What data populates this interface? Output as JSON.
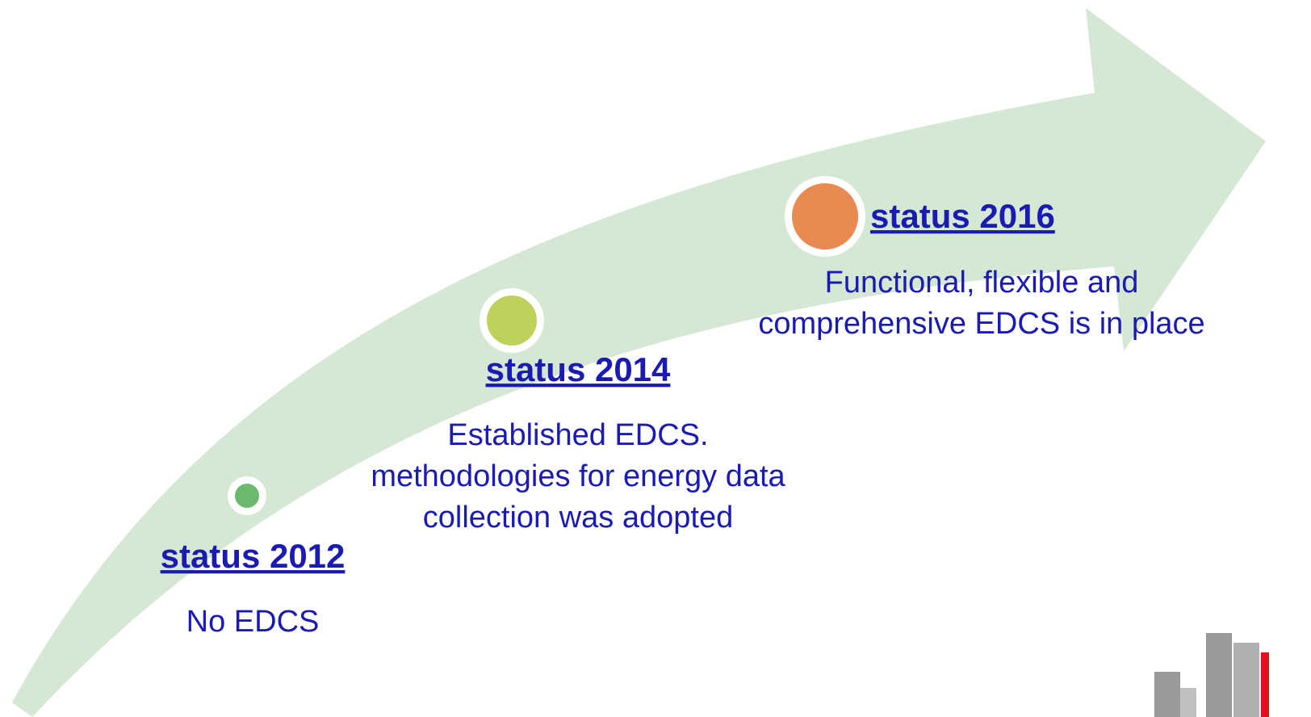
{
  "milestones": [
    {
      "title": "status 2012",
      "lines": [
        "No EDCS"
      ]
    },
    {
      "title": "status 2014",
      "lines": [
        "Established EDCS.",
        "methodologies for energy data",
        "collection was adopted"
      ]
    },
    {
      "title": "status 2016",
      "lines": [
        "Functional, flexible and",
        "comprehensive EDCS is in place"
      ]
    }
  ]
}
